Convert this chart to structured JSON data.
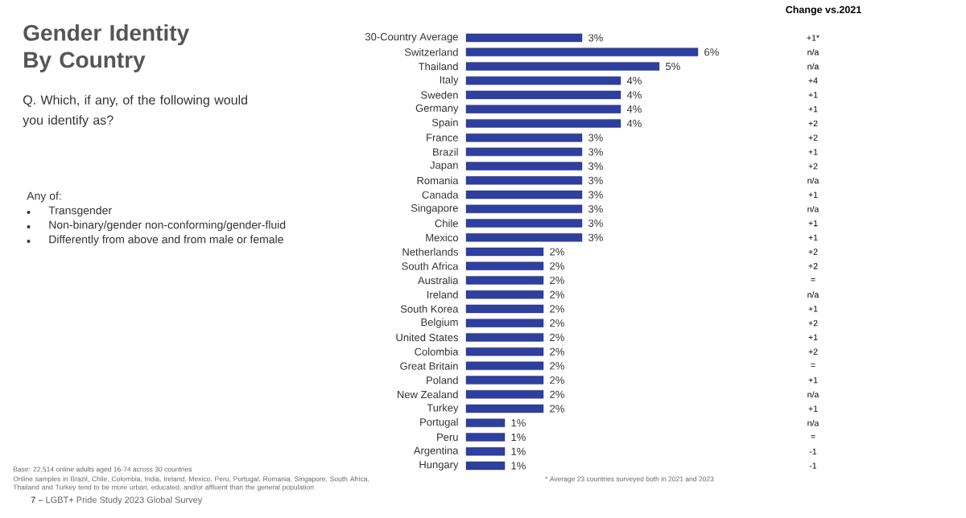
{
  "chart_data": {
    "type": "bar",
    "orientation": "horizontal",
    "title": "Gender Identity By Country",
    "subtitle": "Q. Which, if any, of the following would you identify as?",
    "categories": [
      "30-Country Average",
      "Switzerland",
      "Thailand",
      "Italy",
      "Sweden",
      "Germany",
      "Spain",
      "France",
      "Brazil",
      "Japan",
      "Romania",
      "Canada",
      "Singapore",
      "Chile",
      "Mexico",
      "Netherlands",
      "South Africa",
      "Australia",
      "Ireland",
      "South Korea",
      "Belgium",
      "United States",
      "Colombia",
      "Great Britain",
      "Poland",
      "New Zealand",
      "Turkey",
      "Portugal",
      "Peru",
      "Argentina",
      "Hungary"
    ],
    "values": [
      3,
      6,
      5,
      4,
      4,
      4,
      4,
      3,
      3,
      3,
      3,
      3,
      3,
      3,
      3,
      2,
      2,
      2,
      2,
      2,
      2,
      2,
      2,
      2,
      2,
      2,
      2,
      1,
      1,
      1,
      1
    ],
    "value_labels": [
      "3%",
      "6%",
      "5%",
      "4%",
      "4%",
      "4%",
      "4%",
      "3%",
      "3%",
      "3%",
      "3%",
      "3%",
      "3%",
      "3%",
      "3%",
      "2%",
      "2%",
      "2%",
      "2%",
      "2%",
      "2%",
      "2%",
      "2%",
      "2%",
      "2%",
      "2%",
      "2%",
      "1%",
      "1%",
      "1%",
      "1%"
    ],
    "color": "#2e3f9e",
    "annotations": [
      "Change vs.2021",
      "+1*",
      "n/a",
      "n/a",
      "+4",
      "+1",
      "+1",
      "+2",
      "+2",
      "+1",
      "+2",
      "n/a",
      "+1",
      "n/a",
      "+1",
      "+1",
      "+2",
      "+2",
      "=",
      "n/a",
      "+1",
      "+2",
      "+1",
      "+2",
      "=",
      "+1",
      "n/a",
      "+1",
      "n/a",
      "=",
      "-1",
      "-1",
      "Any of:",
      "Transgender",
      "Non-binary/gender non-conforming/gender-fluid",
      "Differently from above and from male or female",
      "Base: 22,514 online adults aged 16-74 across 30 countries",
      "Online samples in Brazil, Chile, Colombia, India, Ireland, Mexico, Peru, Portugal, Romania, Singapore, South Africa, Thailand and Turkey tend to be more urban, educated, and/or affluent than the general population",
      "**7 –** LGBT+ Pride Study 2023 Global Survey",
      "* Average 23 countries surveyed both in 2021 and 2023"
    ]
  }
}
